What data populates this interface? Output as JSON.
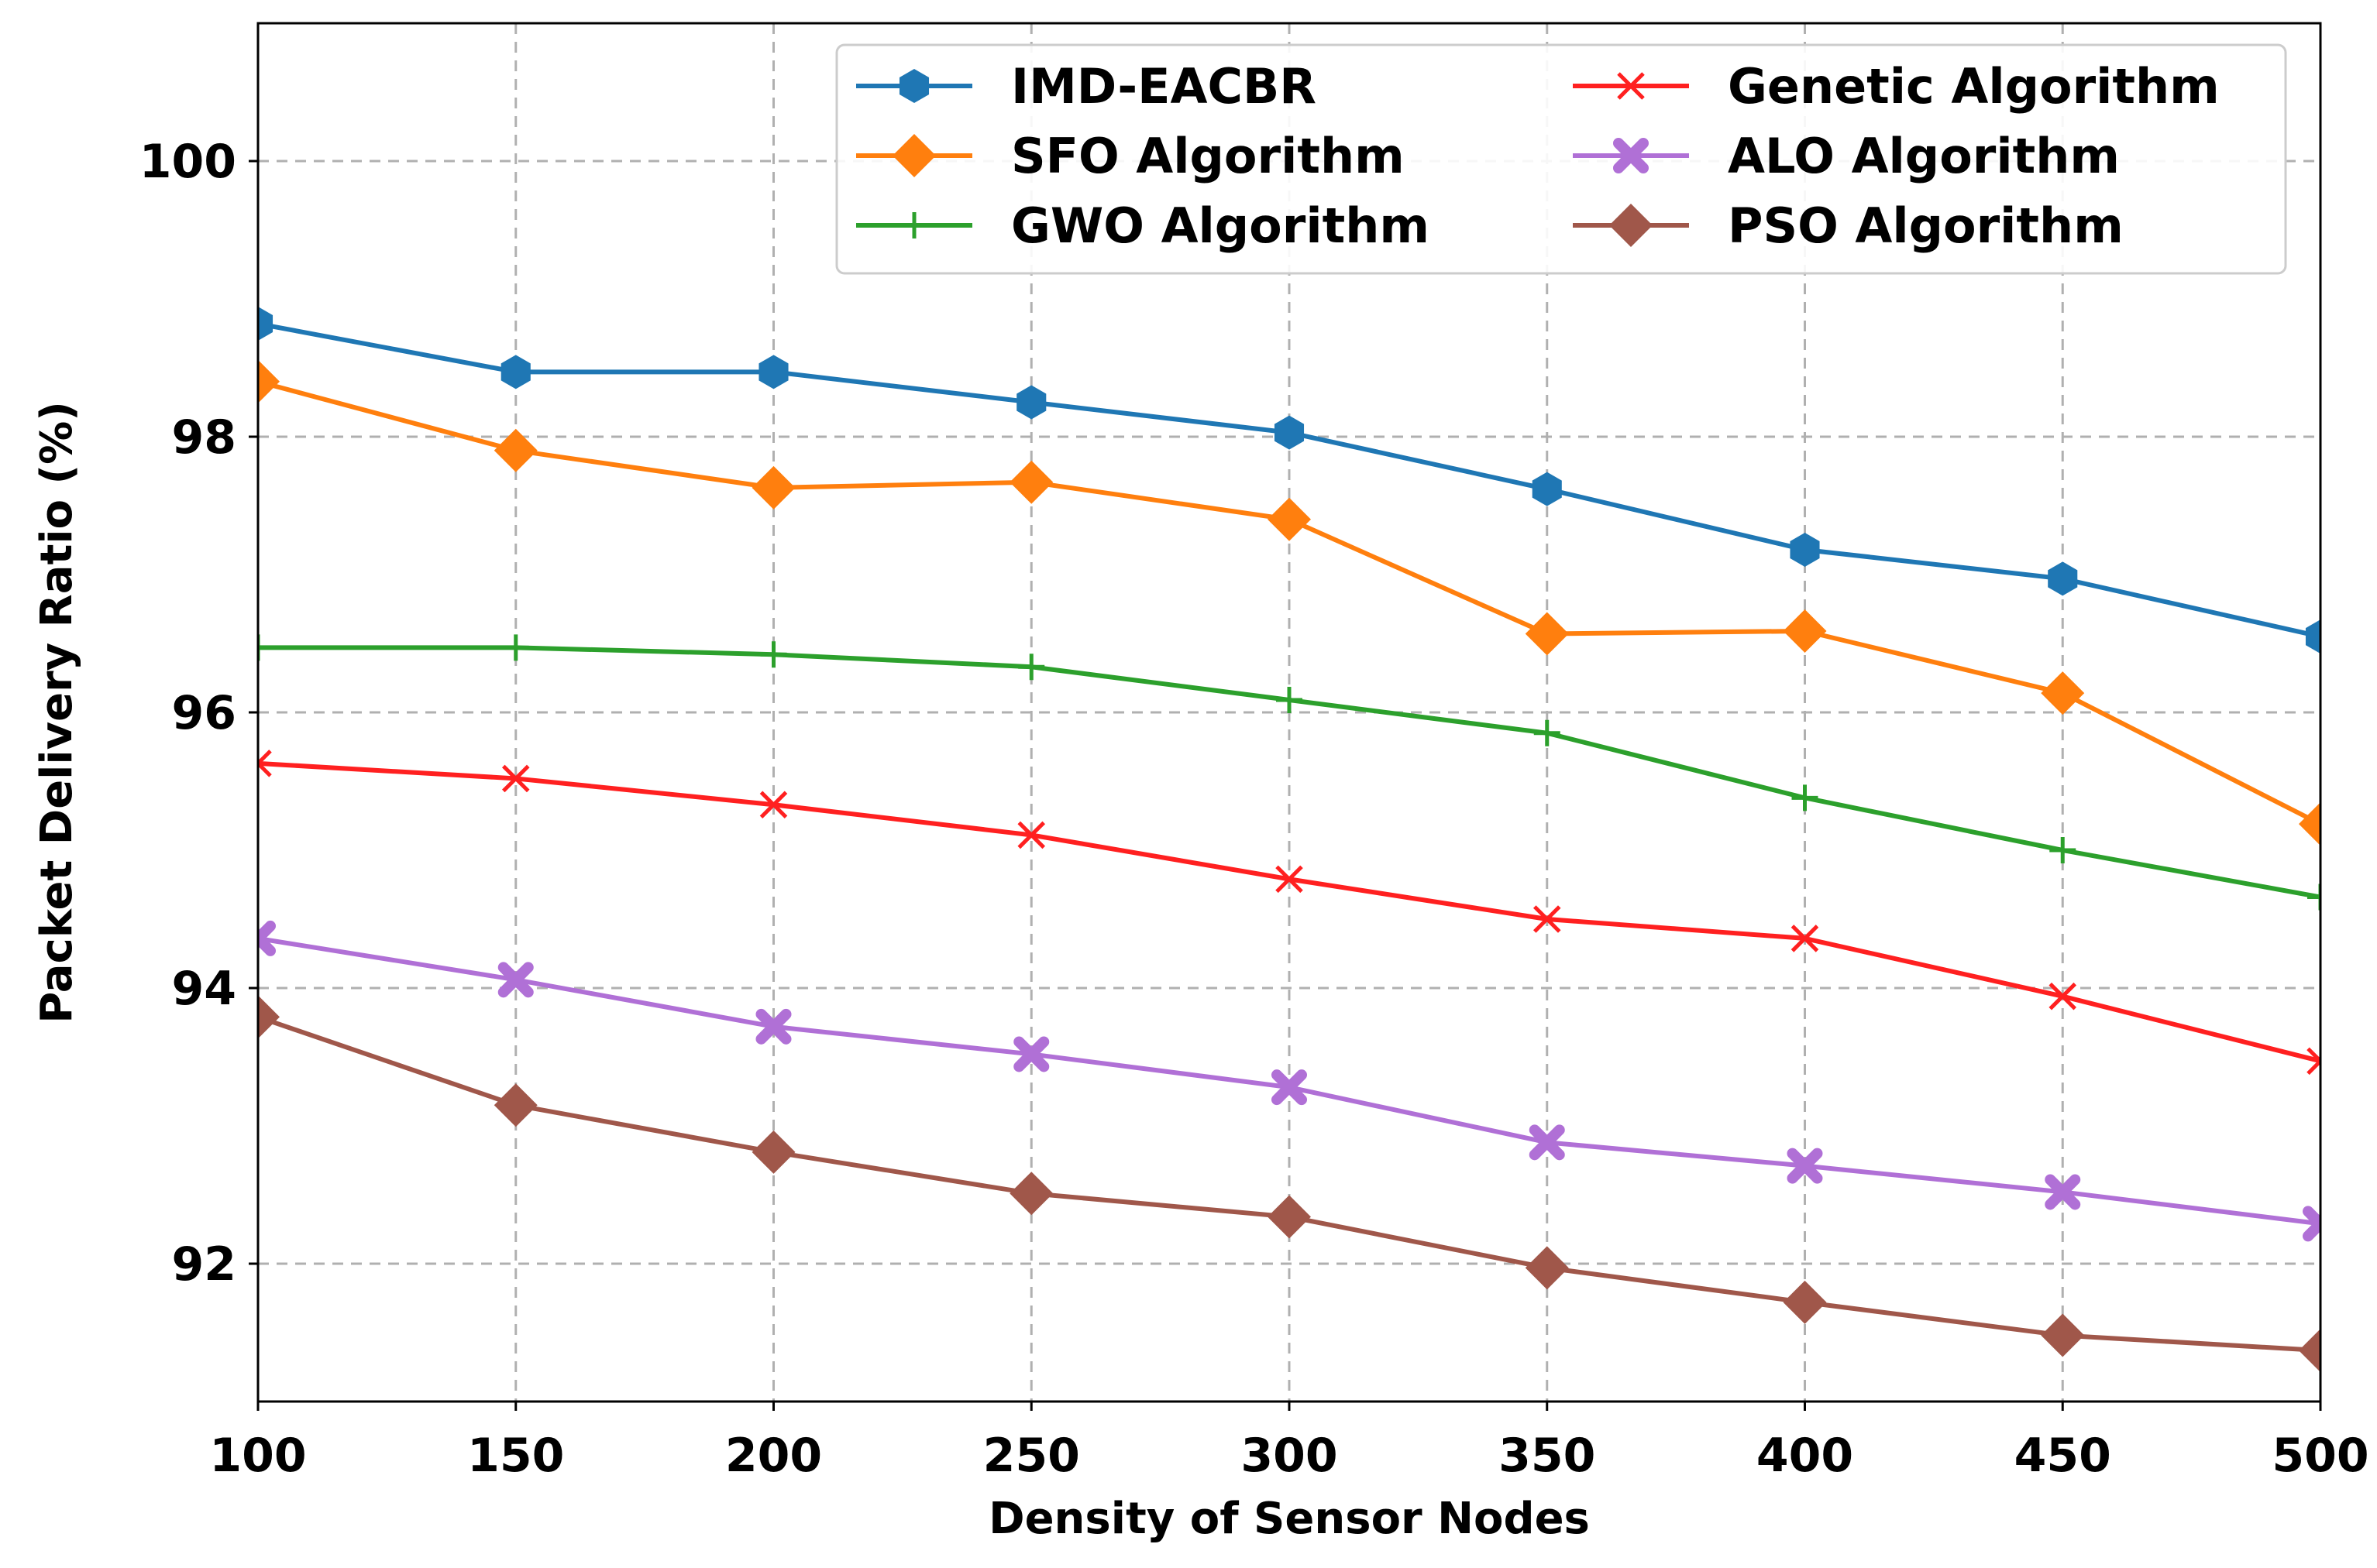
{
  "chart_data": {
    "type": "line",
    "title": "",
    "xlabel": "Density of Sensor Nodes",
    "ylabel": "Packet Delivery Ratio (%)",
    "x": [
      100,
      150,
      200,
      250,
      300,
      350,
      400,
      450,
      500
    ],
    "xlim": [
      100,
      500
    ],
    "ylim": [
      91.0,
      101.0
    ],
    "xticks": [
      "100",
      "150",
      "200",
      "250",
      "300",
      "350",
      "400",
      "450",
      "500"
    ],
    "yticks": [
      "92",
      "94",
      "96",
      "98",
      "100"
    ],
    "ytick_values": [
      92,
      94,
      96,
      98,
      100
    ],
    "grid": true,
    "legend_position": "top-right",
    "series": [
      {
        "name": "IMD-EACBR",
        "color": "#1f77b4",
        "marker": "hexagon",
        "values": [
          98.82,
          98.47,
          98.47,
          98.25,
          98.03,
          97.62,
          97.18,
          96.97,
          96.55
        ]
      },
      {
        "name": "SFO Algorithm",
        "color": "#ff7f0e",
        "marker": "diamond",
        "values": [
          98.4,
          97.9,
          97.63,
          97.67,
          97.4,
          96.57,
          96.59,
          96.14,
          95.19
        ]
      },
      {
        "name": "GWO Algorithm",
        "color": "#2ca02c",
        "marker": "plus",
        "values": [
          96.47,
          96.47,
          96.42,
          96.33,
          96.09,
          95.85,
          95.38,
          95.0,
          94.66
        ]
      },
      {
        "name": "Genetic Algorithm",
        "color": "#ff2020",
        "marker": "x",
        "values": [
          95.63,
          95.52,
          95.33,
          95.11,
          94.79,
          94.5,
          94.36,
          93.94,
          93.47
        ]
      },
      {
        "name": "ALO Algorithm",
        "color": "#b070d6",
        "marker": "xfilled",
        "values": [
          94.36,
          94.06,
          93.72,
          93.52,
          93.28,
          92.88,
          92.71,
          92.52,
          92.29
        ]
      },
      {
        "name": "PSO Algorithm",
        "color": "#a0574a",
        "marker": "diamond",
        "values": [
          93.79,
          93.15,
          92.81,
          92.51,
          92.34,
          91.97,
          91.72,
          91.48,
          91.37
        ]
      }
    ]
  }
}
